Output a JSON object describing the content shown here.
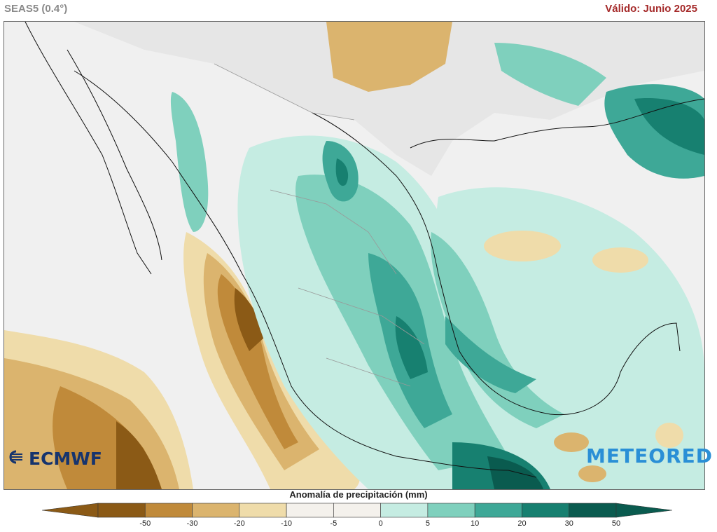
{
  "header": {
    "model_label": "SEAS5 (0.4°)",
    "valid_label": "Válido: Junio 2025"
  },
  "map": {
    "region": "Mexico, Gulf of Mexico, Central America",
    "variable": "precipitation anomaly"
  },
  "branding": {
    "left_logo": "ECMWF",
    "right_logo": "METEORED"
  },
  "legend": {
    "title": "Anomalía de precipitación (mm)",
    "ticks": [
      "-50",
      "-30",
      "-20",
      "-10",
      "-5",
      "0",
      "5",
      "10",
      "20",
      "30",
      "50"
    ],
    "colors": [
      "#8b5a16",
      "#c08a3a",
      "#dbb46e",
      "#efdcaa",
      "#f4f1ec",
      "#f4f1ec",
      "#c5ece2",
      "#7fd0bd",
      "#3ea897",
      "#178070",
      "#0a5b4f"
    ]
  }
}
